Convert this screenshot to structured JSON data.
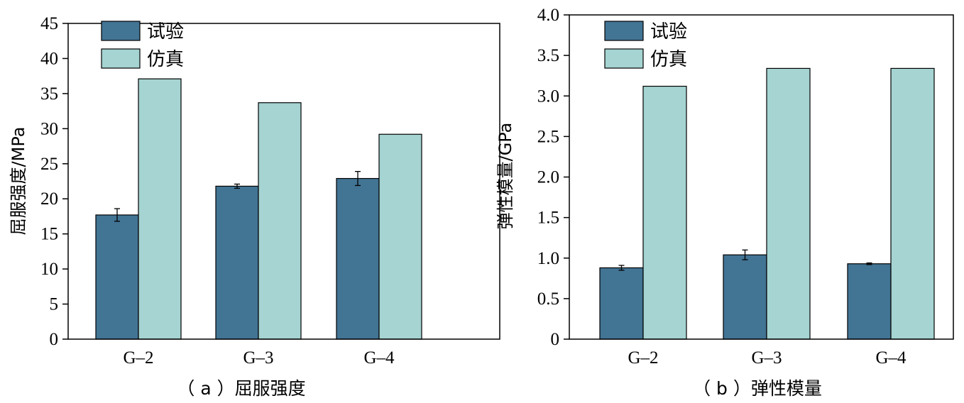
{
  "colors": {
    "test": "#427494",
    "sim": "#a5d4d2",
    "axis": "#000000"
  },
  "chart_data": [
    {
      "type": "bar",
      "caption": "（ a ）屈服强度",
      "ylabel": "屈服强度/MPa",
      "categories": [
        "G–2",
        "G–3",
        "G–4"
      ],
      "yticks": [
        "0",
        "5",
        "10",
        "15",
        "20",
        "25",
        "30",
        "35",
        "40",
        "45"
      ],
      "ylim": [
        0,
        45
      ],
      "series": [
        {
          "name": "试验",
          "values": [
            17.7,
            21.8,
            22.9
          ],
          "errors": [
            0.9,
            0.3,
            1.0
          ]
        },
        {
          "name": "仿真",
          "values": [
            37.1,
            33.7,
            29.2
          ]
        }
      ],
      "legend": "top-left",
      "grid": false
    },
    {
      "type": "bar",
      "caption": "（ b ）弹性模量",
      "ylabel": "弹性模量/GPa",
      "categories": [
        "G–2",
        "G–3",
        "G–4"
      ],
      "yticks": [
        "0",
        "0.5",
        "1.0",
        "1.5",
        "2.0",
        "2.5",
        "3.0",
        "3.5",
        "4.0"
      ],
      "ylim": [
        0,
        4.0
      ],
      "series": [
        {
          "name": "试验",
          "values": [
            0.88,
            1.04,
            0.93
          ],
          "errors": [
            0.03,
            0.06,
            0.01
          ]
        },
        {
          "name": "仿真",
          "values": [
            3.12,
            3.34,
            3.34
          ]
        }
      ],
      "legend": "top-left",
      "grid": false
    }
  ]
}
